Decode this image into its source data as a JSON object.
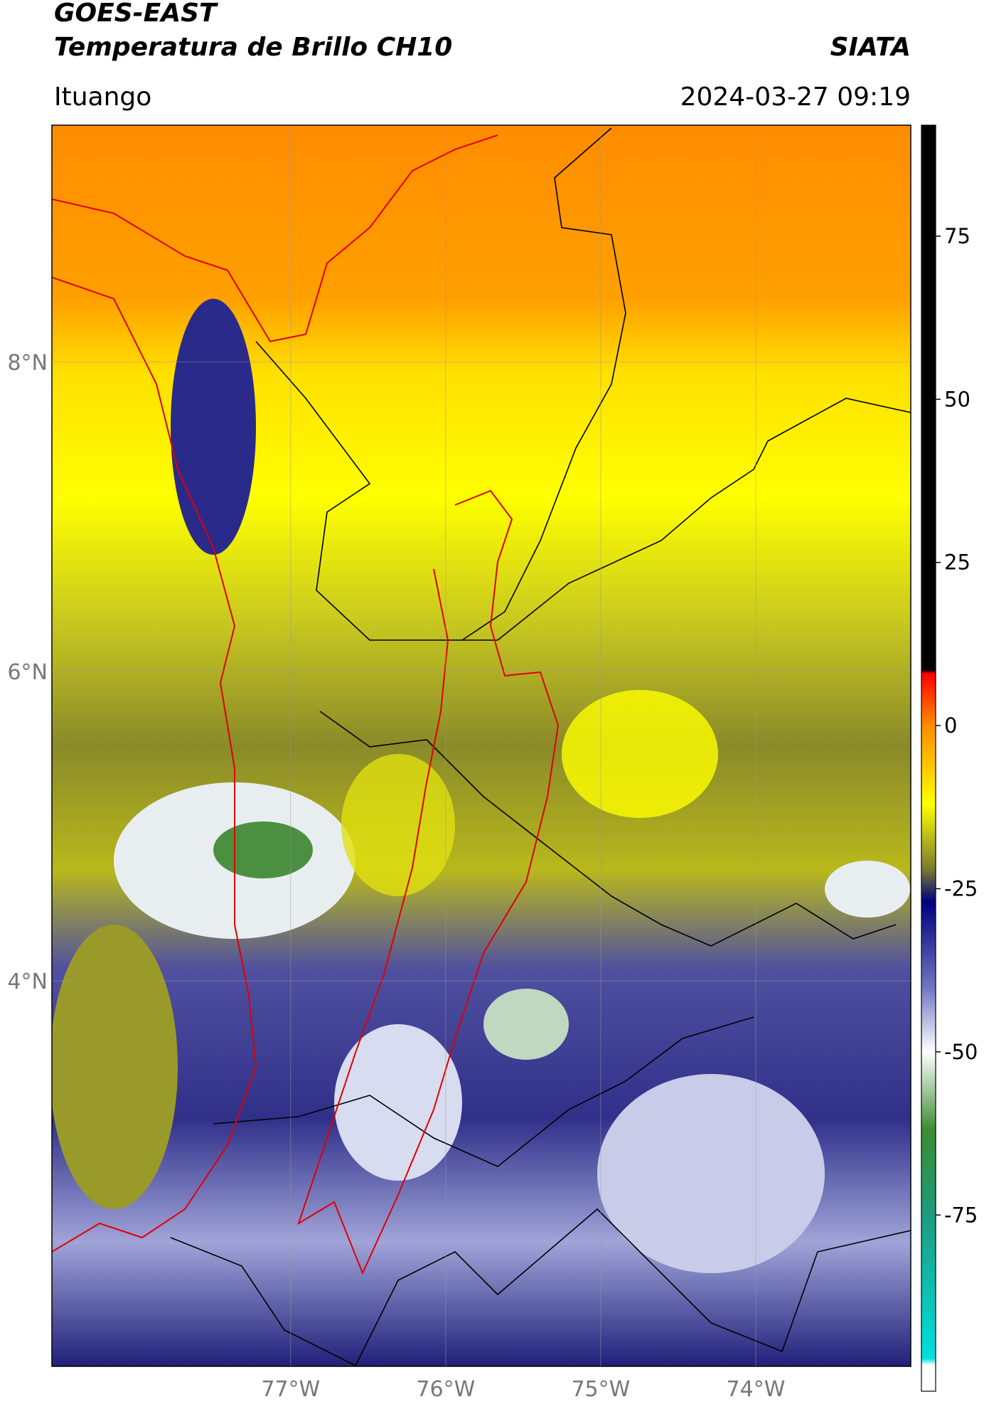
{
  "header": {
    "title": "GOES-EAST",
    "subtitle": "Temperatura de Brillo CH10",
    "brand": "SIATA",
    "location": "Ituango",
    "timestamp": "2024-03-27 09:19"
  },
  "map": {
    "xlim": [
      -78.54,
      -73.0
    ],
    "ylim": [
      1.51,
      9.53
    ],
    "xticks": [
      {
        "value": -77,
        "label": "77°W"
      },
      {
        "value": -76,
        "label": "76°W"
      },
      {
        "value": -75,
        "label": "75°W"
      },
      {
        "value": -74,
        "label": "74°W"
      }
    ],
    "yticks": [
      {
        "value": 8,
        "label": "8°N"
      },
      {
        "value": 6,
        "label": "6°N"
      },
      {
        "value": 4,
        "label": "4°N"
      }
    ],
    "grid": true
  },
  "colorbar": {
    "lim": [
      -102,
      92
    ],
    "ticks": [
      75,
      50,
      25,
      0,
      -25,
      -50,
      -75
    ],
    "stops": [
      [
        92,
        "#000000"
      ],
      [
        8.5,
        "#000000"
      ],
      [
        8,
        "#ff0000"
      ],
      [
        0,
        "#ff8c00"
      ],
      [
        -12,
        "#ffff00"
      ],
      [
        -22,
        "#7a7a30"
      ],
      [
        -27,
        "#000080"
      ],
      [
        -40,
        "#6f74c0"
      ],
      [
        -50,
        "#ffffff"
      ],
      [
        -62,
        "#3c8c32"
      ],
      [
        -75,
        "#1e9a7e"
      ],
      [
        -97,
        "#00e0e0"
      ],
      [
        -98,
        "#ffffff"
      ],
      [
        -102,
        "#ffffff"
      ]
    ]
  }
}
